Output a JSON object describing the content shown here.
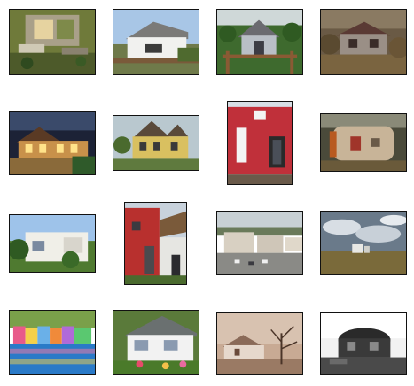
{
  "grid": {
    "rows": 4,
    "columns": 4,
    "thumbnails": [
      {
        "subject": "aerial-house-garden-icon"
      },
      {
        "subject": "white-cottage-fence-icon"
      },
      {
        "subject": "house-behind-garden-fence-icon"
      },
      {
        "subject": "ruined-house-trees-icon"
      },
      {
        "subject": "lit-mansion-night-icon"
      },
      {
        "subject": "yellow-victorian-house-icon"
      },
      {
        "subject": "red-modern-house-icon"
      },
      {
        "subject": "stucco-cottage-icon"
      },
      {
        "subject": "white-modern-house-icon"
      },
      {
        "subject": "red-house-porch-icon"
      },
      {
        "subject": "apartment-blocks-parking-icon"
      },
      {
        "subject": "field-cloudy-sky-icon"
      },
      {
        "subject": "colorful-waterfront-houses-icon"
      },
      {
        "subject": "suburban-house-flowers-icon"
      },
      {
        "subject": "sepia-cottage-tree-icon"
      },
      {
        "subject": "abandoned-dark-house-icon"
      }
    ]
  }
}
